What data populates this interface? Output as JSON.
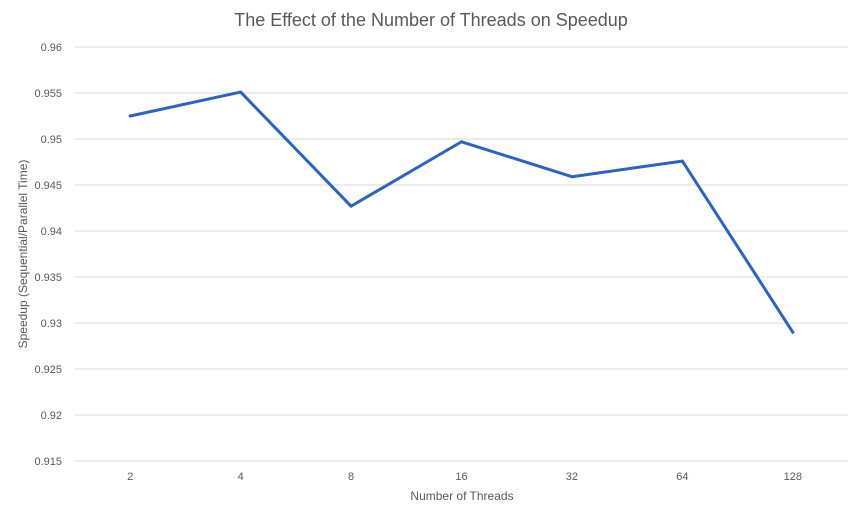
{
  "chart_data": {
    "type": "line",
    "title": "The Effect of the Number of Threads on Speedup",
    "xlabel": "Number of Threads",
    "ylabel": "Speedup (Sequential/Parallel Time)",
    "categories": [
      "2",
      "4",
      "8",
      "16",
      "32",
      "64",
      "128"
    ],
    "series": [
      {
        "values": [
          0.9525,
          0.9551,
          0.9427,
          0.9497,
          0.9459,
          0.9476,
          0.929
        ]
      }
    ],
    "ylim": [
      0.915,
      0.96
    ],
    "yticks": [
      "0.915",
      "0.92",
      "0.925",
      "0.93",
      "0.935",
      "0.94",
      "0.945",
      "0.95",
      "0.955",
      "0.96"
    ],
    "grid": true,
    "legend": "none",
    "series_color": "#2e62c2"
  }
}
